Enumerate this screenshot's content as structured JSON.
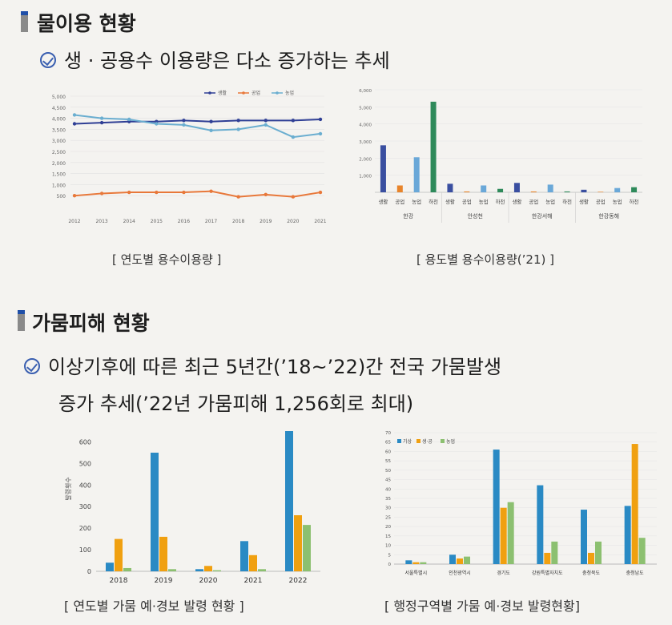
{
  "section1": {
    "title": "물이용 현황",
    "bullet": "생 · 공용수 이용량은 다소 증가하는 추세"
  },
  "section2": {
    "title": "가뭄피해 현황",
    "bullet_line1": "이상기후에 따른 최근 5년간(’18~’22)간 전국 가뭄발생",
    "bullet_line2": "증가 추세(’22년 가뭄피해 1,256회로 최대)"
  },
  "captions": {
    "chart1": "[ 연도별 용수이용량 ]",
    "chart2": "[ 용도별 용수이용량(’21) ]",
    "chart3": "[ 연도별 가뭄 예·경보 발령 현황 ]",
    "chart4": "[ 행정구역별 가뭄 예·경보 발령현황]"
  },
  "chart_data": [
    {
      "type": "line",
      "x": [
        "2012",
        "2013",
        "2014",
        "2015",
        "2016",
        "2017",
        "2018",
        "2019",
        "2020",
        "2021"
      ],
      "ylim": [
        0,
        5000
      ],
      "yticks": [
        "500",
        "1,000",
        "1,500",
        "2,000",
        "2,500",
        "3,000",
        "3,500",
        "4,000",
        "4,500",
        "5,000"
      ],
      "legend_position": "top",
      "series": [
        {
          "name": "생활",
          "color": "#2f3f95",
          "values": [
            3750,
            3800,
            3850,
            3850,
            3900,
            3850,
            3900,
            3900,
            3900,
            3950
          ]
        },
        {
          "name": "공업",
          "color": "#e8783a",
          "values": [
            500,
            600,
            650,
            650,
            650,
            700,
            450,
            550,
            450,
            650
          ]
        },
        {
          "name": "농업",
          "color": "#6aaed0",
          "values": [
            4150,
            4000,
            3950,
            3750,
            3700,
            3450,
            3500,
            3700,
            3150,
            3300
          ]
        }
      ]
    },
    {
      "type": "bar",
      "ylim": [
        0,
        6000
      ],
      "yticks": [
        "1,000",
        "2,000",
        "3,000",
        "4,000",
        "5,000",
        "6,000"
      ],
      "subcategories": [
        "생활",
        "공업",
        "농업",
        "하천"
      ],
      "groups": [
        "한강",
        "안성천",
        "한강서해",
        "한강동해"
      ],
      "colors": [
        "#3a4fa0",
        "#e8842a",
        "#6aa8d8",
        "#2e8a5a"
      ],
      "values": [
        [
          2750,
          400,
          2050,
          5300
        ],
        [
          500,
          50,
          400,
          200
        ],
        [
          550,
          50,
          450,
          50
        ],
        [
          150,
          30,
          250,
          300
        ]
      ]
    },
    {
      "type": "bar",
      "ylabel": "발령횟수",
      "ylim": [
        0,
        650
      ],
      "yticks": [
        "0",
        "100",
        "200",
        "300",
        "400",
        "500",
        "600"
      ],
      "categories": [
        "2018",
        "2019",
        "2020",
        "2021",
        "2022"
      ],
      "series": [
        {
          "name": "",
          "color": "#2a8ac4",
          "values": [
            40,
            550,
            10,
            140,
            650
          ]
        },
        {
          "name": "",
          "color": "#f0a010",
          "values": [
            150,
            160,
            25,
            75,
            260
          ]
        },
        {
          "name": "",
          "color": "#8cc070",
          "values": [
            15,
            10,
            5,
            10,
            215
          ]
        }
      ]
    },
    {
      "type": "bar",
      "ylim": [
        0,
        70
      ],
      "yticks": [
        "0",
        "5",
        "10",
        "15",
        "20",
        "25",
        "30",
        "35",
        "40",
        "45",
        "50",
        "55",
        "60",
        "65",
        "70"
      ],
      "legend_position": "top-left",
      "categories": [
        "서울특별시",
        "인천광역시",
        "경기도",
        "강원특별자치도",
        "충청북도",
        "충청남도"
      ],
      "series": [
        {
          "name": "기상",
          "color": "#2a8ac4",
          "values": [
            2,
            5,
            61,
            42,
            29,
            31
          ]
        },
        {
          "name": "생·공",
          "color": "#f0a010",
          "values": [
            1,
            3,
            30,
            6,
            6,
            64
          ]
        },
        {
          "name": "농업",
          "color": "#8cc070",
          "values": [
            1,
            4,
            33,
            12,
            12,
            14
          ]
        }
      ]
    }
  ]
}
